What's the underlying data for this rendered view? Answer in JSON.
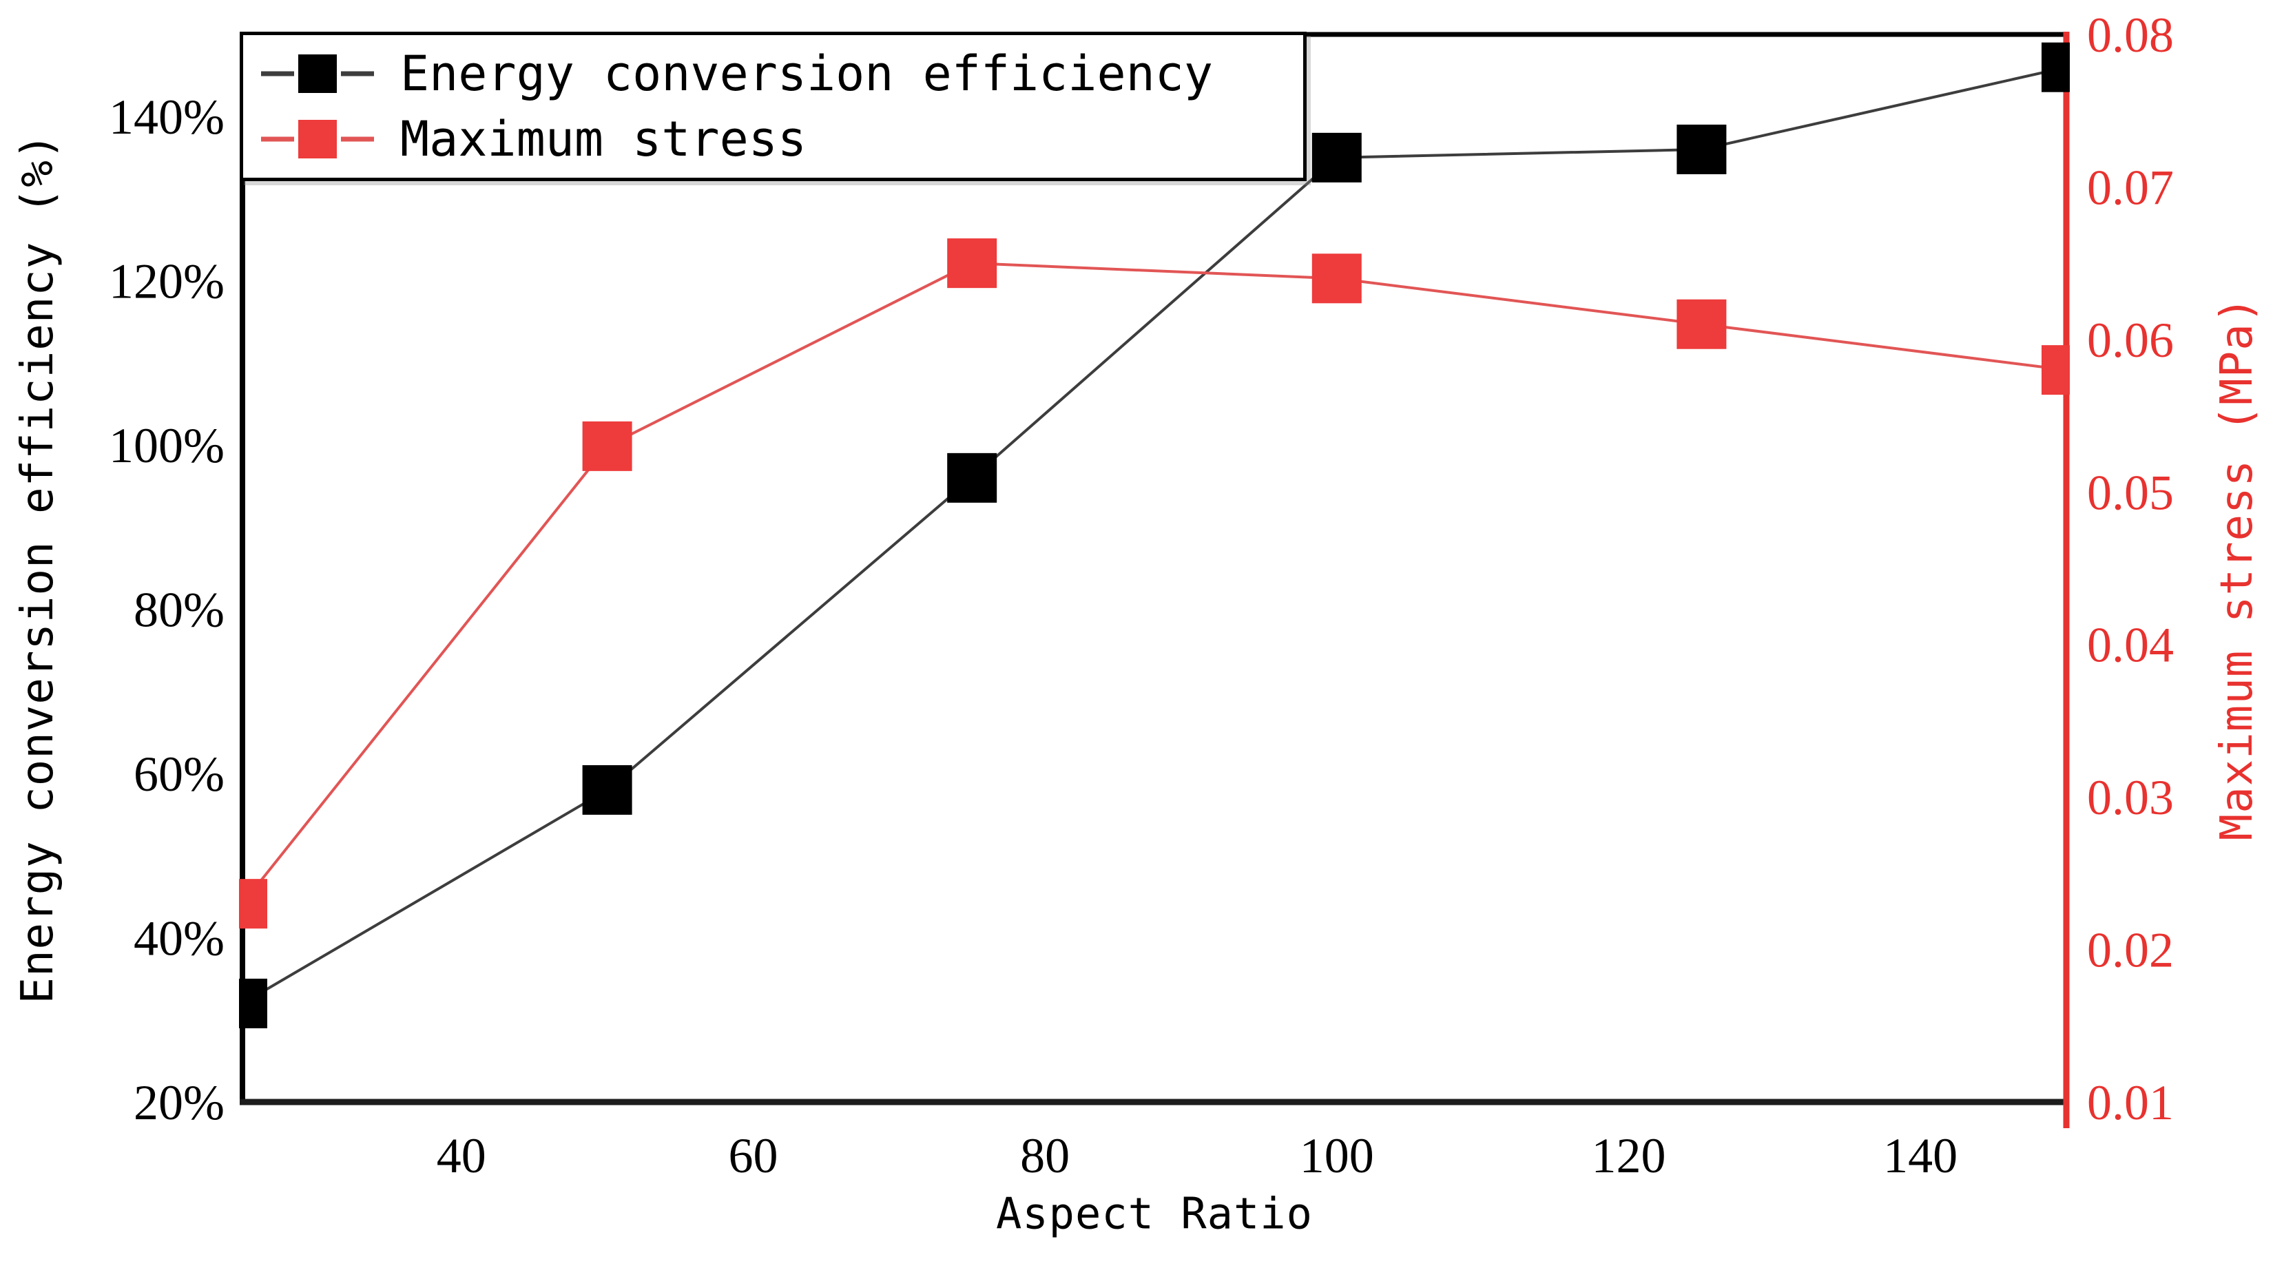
{
  "page": {
    "background": "#ffffff"
  },
  "chart_data": {
    "type": "line",
    "title": "",
    "xlabel": "Aspect Ratio",
    "x": [
      25,
      50,
      75,
      100,
      125,
      150
    ],
    "xlim": [
      25,
      150
    ],
    "x_ticks": [
      {
        "value": 40,
        "label": "40"
      },
      {
        "value": 60,
        "label": "60"
      },
      {
        "value": 80,
        "label": "80"
      },
      {
        "value": 100,
        "label": "100"
      },
      {
        "value": 120,
        "label": "120"
      },
      {
        "value": 140,
        "label": "140"
      }
    ],
    "left_axis": {
      "label": "Energy conversion efficiency (%)",
      "lim": [
        20,
        150
      ],
      "color": "#000000",
      "ticks": [
        {
          "value": 20,
          "label": "20%"
        },
        {
          "value": 40,
          "label": "40%"
        },
        {
          "value": 60,
          "label": "60%"
        },
        {
          "value": 80,
          "label": "80%"
        },
        {
          "value": 100,
          "label": "100%"
        },
        {
          "value": 120,
          "label": "120%"
        },
        {
          "value": 140,
          "label": "140%"
        }
      ]
    },
    "right_axis": {
      "label": "Maximum stress (MPa)",
      "lim": [
        0.01,
        0.08
      ],
      "color": "#e8322f",
      "ticks": [
        {
          "value": 0.01,
          "label": "0.01"
        },
        {
          "value": 0.02,
          "label": "0.02"
        },
        {
          "value": 0.03,
          "label": "0.03"
        },
        {
          "value": 0.04,
          "label": "0.04"
        },
        {
          "value": 0.05,
          "label": "0.05"
        },
        {
          "value": 0.06,
          "label": "0.06"
        },
        {
          "value": 0.07,
          "label": "0.07"
        },
        {
          "value": 0.08,
          "label": "0.08"
        }
      ]
    },
    "series": [
      {
        "name": "Energy conversion efficiency",
        "axis": "left",
        "marker": "square",
        "marker_color": "#000000",
        "line_color": "#3d3d3d",
        "values": [
          32,
          58,
          96,
          135,
          136,
          146
        ]
      },
      {
        "name": "Maximum stress",
        "axis": "right",
        "marker": "square",
        "marker_color": "#ee3b3b",
        "line_color": "#e25555",
        "values": [
          0.023,
          0.053,
          0.065,
          0.064,
          0.061,
          0.058
        ]
      }
    ],
    "legend": {
      "position": "top-left"
    },
    "grid": false
  }
}
